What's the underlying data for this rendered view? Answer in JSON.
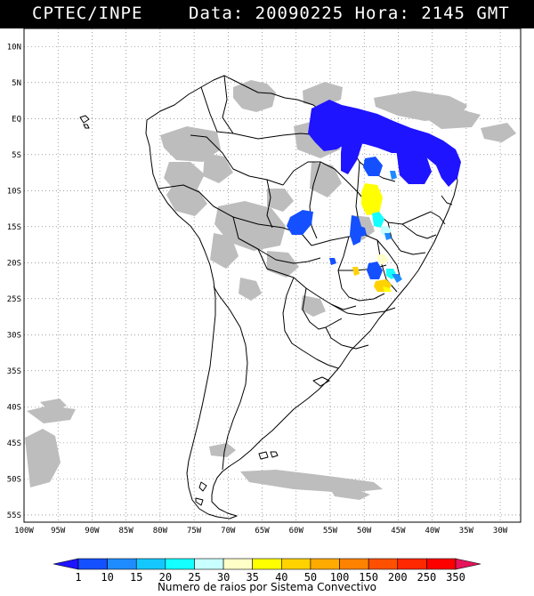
{
  "header": {
    "org": "CPTEC/INPE",
    "datetime": "Data: 20090225 Hora: 2145 GMT"
  },
  "map": {
    "lat_labels": [
      "10N",
      "5N",
      "EQ",
      "5S",
      "10S",
      "15S",
      "20S",
      "25S",
      "30S",
      "35S",
      "40S",
      "45S",
      "50S",
      "55S"
    ],
    "lat_values": [
      10,
      5,
      0,
      -5,
      -10,
      -15,
      -20,
      -25,
      -30,
      -35,
      -40,
      -45,
      -50,
      -55
    ],
    "lon_labels": [
      "100W",
      "95W",
      "90W",
      "85W",
      "80W",
      "75W",
      "70W",
      "65W",
      "60W",
      "55W",
      "50W",
      "45W",
      "40W",
      "35W",
      "30W"
    ],
    "lon_values": [
      -100,
      -95,
      -90,
      -85,
      -80,
      -75,
      -70,
      -65,
      -60,
      -55,
      -50,
      -45,
      -40,
      -35,
      -30
    ],
    "lon_range": [
      -100,
      -27
    ],
    "lat_range": [
      -56,
      12.5
    ],
    "grid": "dotted",
    "cloud_color": "#bdbdbd"
  },
  "colorbar": {
    "labels": [
      "1",
      "10",
      "15",
      "20",
      "25",
      "30",
      "35",
      "40",
      "50",
      "100",
      "150",
      "200",
      "250",
      "350"
    ],
    "colors": [
      "#1e14ff",
      "#1450ff",
      "#1e8cff",
      "#14c8ff",
      "#14ffff",
      "#c8ffff",
      "#ffffc8",
      "#ffff00",
      "#ffd200",
      "#ffaa00",
      "#ff8200",
      "#ff5000",
      "#ff2800",
      "#ff0000",
      "#e6145a"
    ],
    "caption": "Numero de raios por Sistema Convectivo"
  }
}
